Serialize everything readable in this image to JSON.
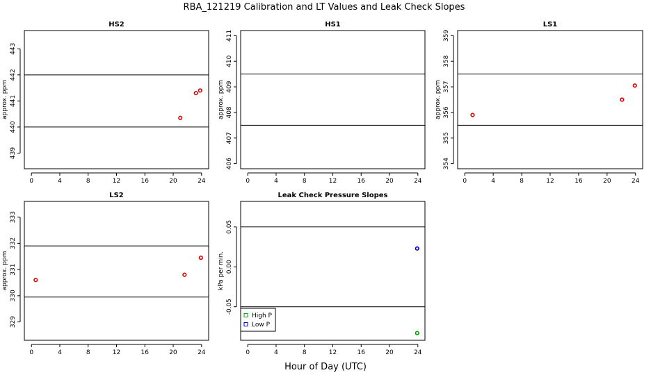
{
  "figure": {
    "title": "RBA_121219 Calibration and LT Values and Leak Check Slopes",
    "xlabel": "Hour of Day (UTC)"
  },
  "colors": {
    "calibration_point": "#dd0000",
    "high_p": "#00aa00",
    "low_p": "#0000cc",
    "lines": "#000000"
  },
  "chart_data": [
    {
      "type": "scatter",
      "title": "HS2",
      "ylabel": "approx. ppm",
      "xlim": [
        -1,
        25
      ],
      "ylim": [
        438.4,
        443.7
      ],
      "xticks": [
        0,
        4,
        8,
        12,
        16,
        20,
        24
      ],
      "yticks": [
        439,
        440,
        441,
        442,
        443
      ],
      "hlines": [
        440,
        442
      ],
      "series": [
        {
          "color": "#dd0000",
          "points": [
            [
              21.0,
              440.35
            ],
            [
              23.2,
              441.3
            ],
            [
              23.8,
              441.4
            ]
          ]
        }
      ]
    },
    {
      "type": "scatter",
      "title": "HS1",
      "ylabel": "approx. ppm",
      "xlim": [
        -1,
        25
      ],
      "ylim": [
        405.8,
        411.2
      ],
      "xticks": [
        0,
        4,
        8,
        12,
        16,
        20,
        24
      ],
      "yticks": [
        406,
        407,
        408,
        409,
        410,
        411
      ],
      "hlines": [
        407.5,
        409.5
      ],
      "series": []
    },
    {
      "type": "scatter",
      "title": "LS1",
      "ylabel": "approx. ppm",
      "xlim": [
        -1,
        25
      ],
      "ylim": [
        353.8,
        359.2
      ],
      "xticks": [
        0,
        4,
        8,
        12,
        16,
        20,
        24
      ],
      "yticks": [
        354,
        355,
        356,
        357,
        358,
        359
      ],
      "hlines": [
        355.5,
        357.5
      ],
      "series": [
        {
          "color": "#dd0000",
          "points": [
            [
              1.1,
              355.9
            ],
            [
              22.1,
              356.5
            ],
            [
              23.9,
              357.05
            ]
          ]
        }
      ]
    },
    {
      "type": "scatter",
      "title": "LS2",
      "ylabel": "approx. ppm",
      "xlim": [
        -1,
        25
      ],
      "ylim": [
        328.3,
        333.6
      ],
      "xticks": [
        0,
        4,
        8,
        12,
        16,
        20,
        24
      ],
      "yticks": [
        329,
        330,
        331,
        332,
        333
      ],
      "hlines": [
        329.95,
        331.9
      ],
      "series": [
        {
          "color": "#dd0000",
          "points": [
            [
              0.6,
              330.6
            ],
            [
              21.6,
              330.8
            ],
            [
              23.9,
              331.45
            ]
          ]
        }
      ]
    },
    {
      "type": "scatter",
      "title": "Leak Check Pressure Slopes",
      "ylabel": "kPa per min.",
      "xlim": [
        -1,
        25
      ],
      "ylim": [
        -0.092,
        0.082
      ],
      "xticks": [
        0,
        4,
        8,
        12,
        16,
        20,
        24
      ],
      "yticks": [
        -0.05,
        0.0,
        0.05
      ],
      "ytick_labels": [
        "-0.05",
        "0.00",
        "0.05"
      ],
      "hlines": [
        -0.05,
        0.05
      ],
      "legend": {
        "position": "bottom-left",
        "entries": [
          "High P",
          "Low P"
        ]
      },
      "series": [
        {
          "name": "High P",
          "color": "#00aa00",
          "points": [
            [
              23.9,
              -0.083
            ]
          ]
        },
        {
          "name": "Low P",
          "color": "#0000cc",
          "points": [
            [
              23.9,
              0.023
            ]
          ]
        }
      ]
    }
  ]
}
